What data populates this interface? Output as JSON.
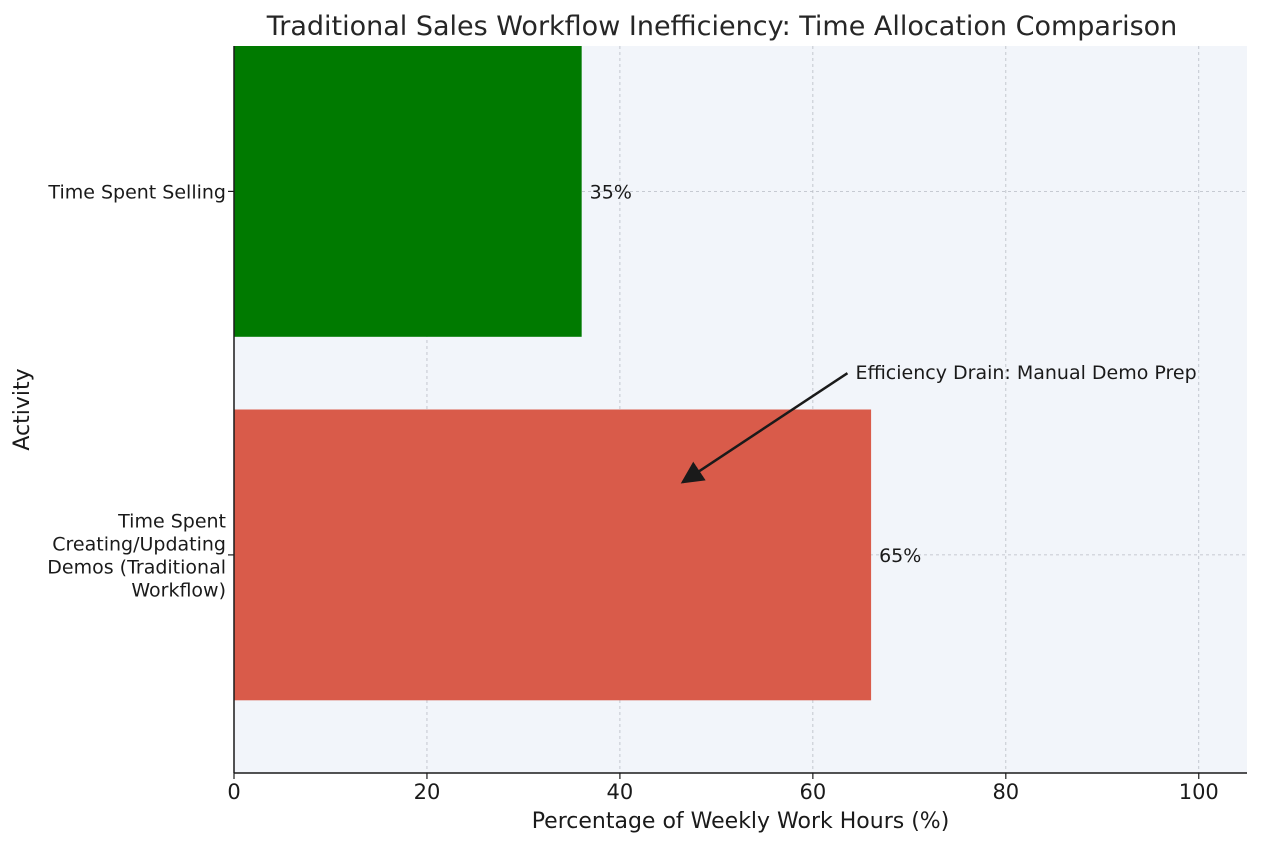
{
  "chart_data": {
    "type": "bar",
    "orientation": "horizontal",
    "title": "Traditional Sales Workflow Inefficiency: Time Allocation Comparison",
    "xlabel": "Percentage of Weekly Work Hours (%)",
    "ylabel": "Activity",
    "xlim": [
      0,
      105
    ],
    "xticks": [
      0,
      20,
      40,
      60,
      80,
      100
    ],
    "grid": true,
    "categories": [
      [
        "Time Spent Selling"
      ],
      [
        "Time Spent",
        "Creating/Updating",
        "Demos (Traditional",
        "Workflow)"
      ]
    ],
    "values": [
      35,
      65
    ],
    "data_labels": [
      "35%",
      "65%"
    ],
    "colors": [
      "#007a00",
      "#d95b4a"
    ],
    "background_color": "#f2f5fa",
    "annotation": {
      "text": "Efficiency Drain: Manual Demo Prep",
      "arrow_to": {
        "x": 46.5,
        "category_index": 1,
        "offset": -0.2
      },
      "text_at": {
        "x": 64,
        "category_index": 0,
        "offset": 0.5
      }
    }
  }
}
